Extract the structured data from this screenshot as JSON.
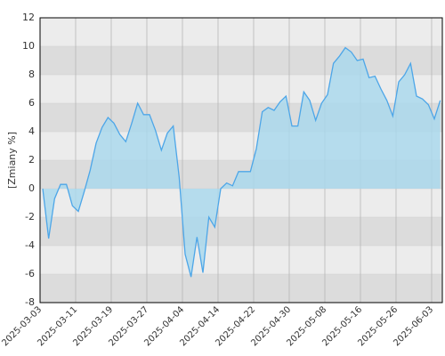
{
  "chart_data": {
    "type": "area",
    "y_label": "[Zmiany %]",
    "categories": [
      "2025-03-03",
      null,
      null,
      null,
      null,
      null,
      "2025-03-11",
      null,
      null,
      null,
      null,
      null,
      "2025-03-19",
      null,
      null,
      null,
      null,
      null,
      "2025-03-27",
      null,
      null,
      null,
      null,
      null,
      "2025-04-04",
      null,
      null,
      null,
      null,
      null,
      "2025-04-14",
      null,
      null,
      null,
      null,
      null,
      "2025-04-22",
      null,
      null,
      null,
      null,
      null,
      "2025-04-30",
      null,
      null,
      null,
      null,
      null,
      "2025-05-08",
      null,
      null,
      null,
      null,
      null,
      "2025-05-16",
      null,
      null,
      null,
      null,
      null,
      "2025-05-26",
      null,
      null,
      null,
      null,
      null,
      "2025-06-03",
      null
    ],
    "values": [
      0,
      -3.5,
      -0.7,
      0.3,
      0.3,
      -1.2,
      -1.6,
      -0.2,
      1.3,
      3.2,
      4.3,
      5.0,
      4.6,
      3.8,
      3.3,
      4.6,
      6.0,
      5.2,
      5.2,
      4.1,
      2.7,
      3.9,
      4.4,
      0.8,
      -4.6,
      -6.2,
      -3.4,
      -5.9,
      -2.0,
      -2.7,
      0.0,
      0.4,
      0.2,
      1.2,
      1.2,
      1.2,
      2.8,
      5.4,
      5.7,
      5.5,
      6.1,
      6.5,
      4.4,
      4.4,
      6.8,
      6.2,
      4.8,
      6.0,
      6.6,
      8.8,
      9.3,
      9.9,
      9.6,
      9.0,
      9.1,
      7.8,
      7.9,
      7.0,
      6.2,
      5.1,
      7.5,
      8.0,
      8.8,
      6.5,
      6.3,
      5.9,
      4.9,
      6.2
    ],
    "color": "#4da6e8",
    "fill": "#a8d8ee",
    "ylim": [
      -8,
      12
    ],
    "yticks": [
      -8,
      -6,
      -4,
      -2,
      0,
      2,
      4,
      6,
      8,
      10,
      12
    ],
    "grid": true
  }
}
